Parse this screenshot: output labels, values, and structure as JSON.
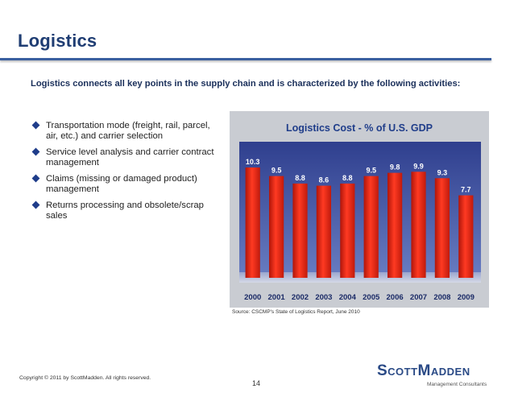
{
  "slide": {
    "title": "Logistics",
    "intro": "Logistics connects all key points in the supply chain and is characterized by the following activities:",
    "bullets": [
      "Transportation mode (freight, rail, parcel, air, etc.) and carrier selection",
      "Service level analysis and carrier contract management",
      "Claims (missing or damaged product) management",
      "Returns processing and obsolete/scrap sales"
    ],
    "source": "Source: CSCMP's State of Logistics Report, June 2010",
    "copyright": "Copyright © 2011 by ScottMadden.  All rights reserved.",
    "page_number": "14",
    "logo": {
      "main": "ScottMadden",
      "sub": "Management Consultants"
    }
  },
  "colors": {
    "title": "#1f3d73",
    "bar": "#e02010",
    "chart_bg": "#3c4f9c",
    "chart_title": "#1f3d8a",
    "label": "#ffffff"
  },
  "chart_data": {
    "type": "bar",
    "title": "Logistics Cost - % of U.S. GDP",
    "categories": [
      "2000",
      "2001",
      "2002",
      "2003",
      "2004",
      "2005",
      "2006",
      "2007",
      "2008",
      "2009"
    ],
    "values": [
      10.3,
      9.5,
      8.8,
      8.6,
      8.8,
      9.5,
      9.8,
      9.9,
      9.3,
      7.7
    ],
    "value_labels": [
      "10.3",
      "9.5",
      "8.8",
      "8.6",
      "8.8",
      "9.5",
      "9.8",
      "9.9",
      "9.3",
      "7.7"
    ],
    "ylim": [
      0,
      11.5
    ],
    "grid": false,
    "legend": "none"
  }
}
